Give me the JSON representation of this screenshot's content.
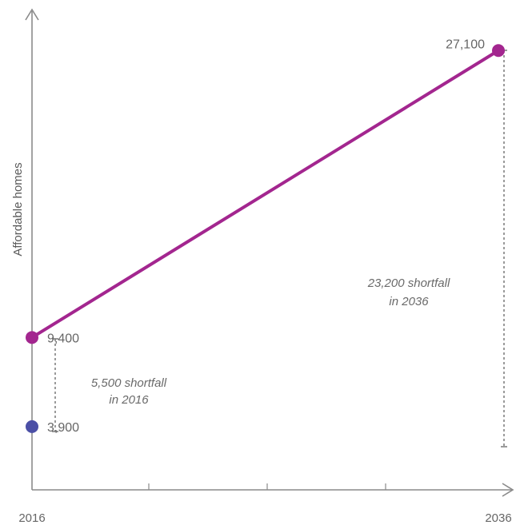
{
  "chart_data": {
    "type": "line",
    "title": "",
    "xlabel": "",
    "ylabel": "Affordable homes",
    "categories": [
      "2016",
      "2036"
    ],
    "x": [
      2016,
      2036
    ],
    "xlim": [
      2016,
      2036
    ],
    "ylim": [
      0,
      28000
    ],
    "grid": false,
    "legend": "none",
    "series": [
      {
        "values": [
          9400,
          27100
        ],
        "color": "#a3268f"
      }
    ],
    "points": [
      {
        "x": 2016,
        "y": 9400,
        "label": "9,400",
        "color": "#a3268f"
      },
      {
        "x": 2036,
        "y": 27100,
        "label": "27,100",
        "color": "#a3268f"
      },
      {
        "x": 2016,
        "y": 3900,
        "label": "3,900",
        "color": "#4b4fa6"
      }
    ],
    "annotations": [
      {
        "line1": "5,500 shortfall",
        "line2": "in 2016",
        "x": 2016,
        "from": 3900,
        "to": 9400
      },
      {
        "line1": "23,200 shortfall",
        "line2": "in 2036",
        "x": 2036,
        "from": 3900,
        "to": 27100
      }
    ]
  }
}
